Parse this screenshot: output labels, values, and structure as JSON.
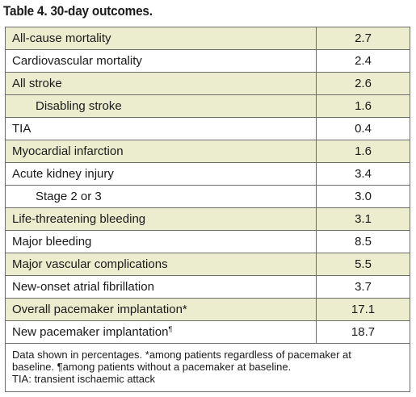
{
  "title": "Table 4. 30-day outcomes.",
  "rows": [
    {
      "label": "All-cause mortality",
      "value": "2.7"
    },
    {
      "label": "Cardiovascular mortality",
      "value": "2.4"
    },
    {
      "label": "All stroke",
      "value": "2.6"
    },
    {
      "label": "Disabling stroke",
      "value": "1.6"
    },
    {
      "label": "TIA",
      "value": "0.4"
    },
    {
      "label": "Myocardial infarction",
      "value": "1.6"
    },
    {
      "label": "Acute kidney injury",
      "value": "3.4"
    },
    {
      "label": "Stage 2 or 3",
      "value": "3.0"
    },
    {
      "label": "Life-threatening bleeding",
      "value": "3.1"
    },
    {
      "label": "Major bleeding",
      "value": "8.5"
    },
    {
      "label": "Major vascular complications",
      "value": "5.5"
    },
    {
      "label": "New-onset atrial fibrillation",
      "value": "3.7"
    },
    {
      "label": "Overall pacemaker implantation*",
      "value": "17.1"
    },
    {
      "label": "New pacemaker implantation",
      "label_sup": "¶",
      "value": "18.7"
    }
  ],
  "footnote": {
    "line1": "Data shown in percentages. *among patients regardless of pacemaker at",
    "line2": "baseline. ¶among patients without a pacemaker at baseline.",
    "line3": "TIA: transient ischaemic attack"
  }
}
